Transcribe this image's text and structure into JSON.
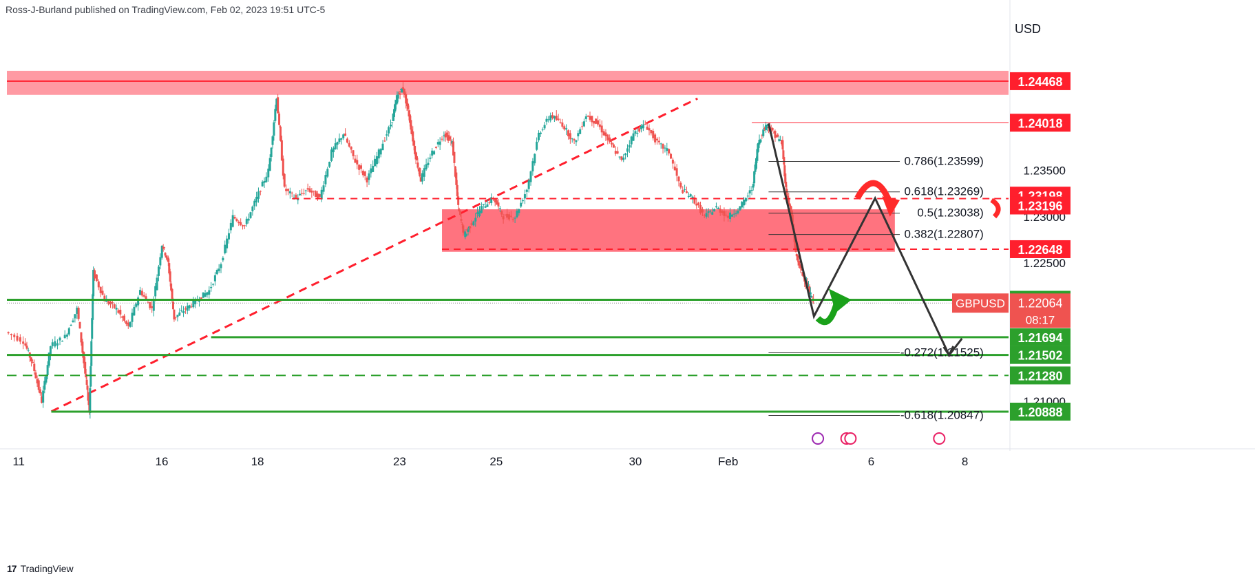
{
  "header": {
    "published_line": "Ross-J-Burland published on TradingView.com, Feb 02, 2023 19:51 UTC-5"
  },
  "footer": {
    "logo_icon": "tradingview-logo-icon",
    "brand": "TradingView"
  },
  "colors": {
    "up": "#26a69a",
    "down": "#ef5350",
    "resistance": "#ff1f2d",
    "support": "#2ca02c",
    "zone": "#ff6b78",
    "projection": "#333333",
    "arrow_red": "#ff2a2a",
    "arrow_green": "#1aa11a"
  },
  "chart_data": {
    "type": "candlestick",
    "symbol": "GBPUSD",
    "currency": "USD",
    "timeframe_note": "intraday",
    "ylim": [
      1.205,
      1.249
    ],
    "x_ticks": [
      "11",
      "16",
      "18",
      "23",
      "25",
      "30",
      "Feb",
      "6",
      "8"
    ],
    "y_ticks": [
      "1.23500",
      "1.23000",
      "1.22500",
      "1.21000"
    ],
    "price_path": [
      [
        0.0,
        1.2175
      ],
      [
        0.018,
        1.2165
      ],
      [
        0.027,
        1.214
      ],
      [
        0.036,
        1.21
      ],
      [
        0.045,
        1.216
      ],
      [
        0.06,
        1.217
      ],
      [
        0.072,
        1.22
      ],
      [
        0.08,
        1.213
      ],
      [
        0.084,
        1.209
      ],
      [
        0.088,
        1.224
      ],
      [
        0.1,
        1.221
      ],
      [
        0.112,
        1.22
      ],
      [
        0.124,
        1.218
      ],
      [
        0.136,
        1.222
      ],
      [
        0.148,
        1.22
      ],
      [
        0.158,
        1.227
      ],
      [
        0.164,
        1.225
      ],
      [
        0.17,
        1.219
      ],
      [
        0.182,
        1.22
      ],
      [
        0.194,
        1.221
      ],
      [
        0.206,
        1.222
      ],
      [
        0.218,
        1.225
      ],
      [
        0.23,
        1.23
      ],
      [
        0.242,
        1.229
      ],
      [
        0.254,
        1.232
      ],
      [
        0.266,
        1.235
      ],
      [
        0.274,
        1.243
      ],
      [
        0.282,
        1.233
      ],
      [
        0.294,
        1.232
      ],
      [
        0.306,
        1.233
      ],
      [
        0.318,
        1.232
      ],
      [
        0.33,
        1.237
      ],
      [
        0.342,
        1.239
      ],
      [
        0.354,
        1.236
      ],
      [
        0.366,
        1.234
      ],
      [
        0.378,
        1.237
      ],
      [
        0.39,
        1.24
      ],
      [
        0.396,
        1.243
      ],
      [
        0.402,
        1.244
      ],
      [
        0.408,
        1.241
      ],
      [
        0.414,
        1.237
      ],
      [
        0.42,
        1.234
      ],
      [
        0.432,
        1.237
      ],
      [
        0.444,
        1.239
      ],
      [
        0.452,
        1.238
      ],
      [
        0.458,
        1.231
      ],
      [
        0.464,
        1.228
      ],
      [
        0.47,
        1.229
      ],
      [
        0.482,
        1.231
      ],
      [
        0.494,
        1.232
      ],
      [
        0.504,
        1.23
      ],
      [
        0.516,
        1.23
      ],
      [
        0.528,
        1.233
      ],
      [
        0.54,
        1.239
      ],
      [
        0.552,
        1.241
      ],
      [
        0.564,
        1.24
      ],
      [
        0.576,
        1.238
      ],
      [
        0.588,
        1.241
      ],
      [
        0.6,
        1.24
      ],
      [
        0.612,
        1.238
      ],
      [
        0.624,
        1.236
      ],
      [
        0.636,
        1.239
      ],
      [
        0.648,
        1.24
      ],
      [
        0.66,
        1.238
      ],
      [
        0.672,
        1.237
      ],
      [
        0.684,
        1.233
      ],
      [
        0.696,
        1.232
      ],
      [
        0.708,
        1.23
      ],
      [
        0.72,
        1.231
      ],
      [
        0.732,
        1.23
      ],
      [
        0.744,
        1.231
      ],
      [
        0.756,
        1.233
      ],
      [
        0.762,
        1.238
      ],
      [
        0.77,
        1.24
      ],
      [
        0.778,
        1.239
      ],
      [
        0.786,
        1.238
      ],
      [
        0.79,
        1.233
      ],
      [
        0.796,
        1.23
      ],
      [
        0.8,
        1.226
      ],
      [
        0.806,
        1.224
      ],
      [
        0.812,
        1.2225
      ],
      [
        0.818,
        1.2206
      ]
    ],
    "horizontal_levels": [
      {
        "label": "1.24468",
        "value": 1.24468,
        "color": "resistance",
        "style": "solid"
      },
      {
        "label": "1.24018",
        "value": 1.24018,
        "color": "resistance",
        "style": "thin"
      },
      {
        "label": "1.23198",
        "value": 1.23198,
        "color": "resistance",
        "style": "none"
      },
      {
        "label": "1.23196",
        "value": 1.23196,
        "color": "resistance",
        "style": "dashed"
      },
      {
        "label": "1.22648",
        "value": 1.22648,
        "color": "resistance",
        "style": "dashed"
      },
      {
        "label": "1.22100",
        "value": 1.221,
        "color": "support",
        "style": "solid"
      },
      {
        "label": "1.21694",
        "value": 1.21694,
        "color": "support",
        "style": "solid"
      },
      {
        "label": "1.21502",
        "value": 1.21502,
        "color": "support",
        "style": "solid"
      },
      {
        "label": "1.21280",
        "value": 1.2128,
        "color": "support",
        "style": "dashed"
      },
      {
        "label": "1.20888",
        "value": 1.20888,
        "color": "support",
        "style": "solid"
      }
    ],
    "current_price": {
      "symbol": "GBPUSD",
      "price": "1.22064",
      "value": 1.22064,
      "countdown": "08:17"
    },
    "fibonacci": [
      {
        "text": "0.786(1.23599)",
        "value": 1.23599
      },
      {
        "text": "0.618(1.23269)",
        "value": 1.23269
      },
      {
        "text": "0.5(1.23038)",
        "value": 1.23038
      },
      {
        "text": "0.382(1.22807)",
        "value": 1.22807
      },
      {
        "text": "-0.272(1.21525)",
        "value": 1.21525
      },
      {
        "text": "-0.618(1.20847)",
        "value": 1.20847
      }
    ],
    "zones": [
      {
        "name": "resistance-zone-top",
        "from": 1.2432,
        "to": 1.2458
      },
      {
        "name": "resistance-zone-mid",
        "from": 1.2262,
        "to": 1.2308
      }
    ],
    "grid": false,
    "legend": "none"
  }
}
